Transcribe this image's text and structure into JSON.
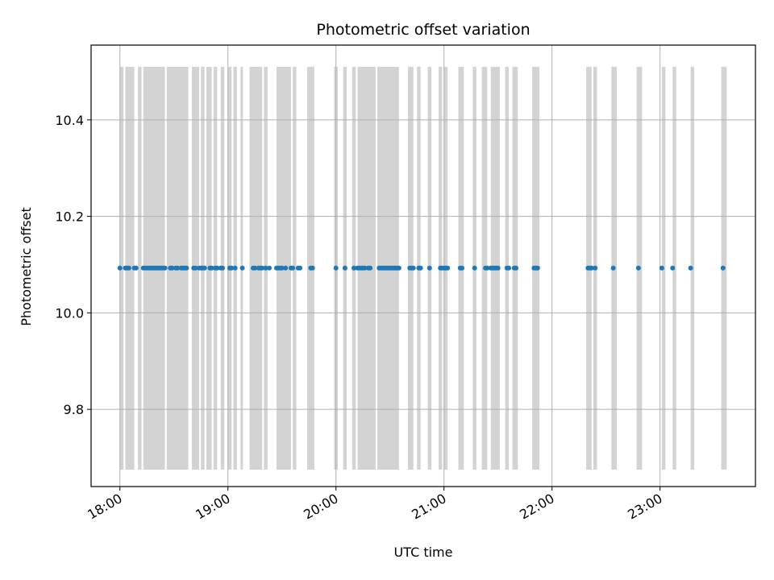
{
  "chart_data": {
    "type": "scatter",
    "title": "Photometric offset variation",
    "xlabel": "UTC time",
    "ylabel": "Photometric offset",
    "x_unit": "UTC time (HH:MM)",
    "xlim": [
      "17:44",
      "23:53"
    ],
    "ylim": [
      9.64,
      10.555
    ],
    "x_ticks": [
      "18:00",
      "19:00",
      "20:00",
      "21:00",
      "22:00",
      "23:00"
    ],
    "y_ticks": [
      9.8,
      10.0,
      10.2,
      10.4
    ],
    "y_tick_labels": [
      "9.8",
      "10.0",
      "10.2",
      "10.4"
    ],
    "grid": true,
    "span_range": [
      9.675,
      10.51
    ],
    "span_color": "#d3d3d3",
    "point_color": "#1f77b4",
    "series": [
      {
        "x": [
          "18:00",
          "18:03",
          "18:04",
          "18:05",
          "18:08",
          "18:09",
          "18:13",
          "18:14",
          "18:15",
          "18:16",
          "18:17",
          "18:18",
          "18:19",
          "18:20",
          "18:21",
          "18:22",
          "18:23",
          "18:24",
          "18:25",
          "18:28",
          "18:29",
          "18:31",
          "18:32",
          "18:34",
          "18:35",
          "18:36",
          "18:37",
          "18:41",
          "18:42",
          "18:44",
          "18:45",
          "18:46",
          "18:47",
          "18:50",
          "18:51",
          "18:53",
          "18:54",
          "18:56",
          "18:57",
          "19:01",
          "19:02",
          "19:04",
          "19:08",
          "19:14",
          "19:15",
          "19:17",
          "19:18",
          "19:19",
          "19:21",
          "19:23",
          "19:27",
          "19:28",
          "19:29",
          "19:30",
          "19:32",
          "19:35",
          "19:36",
          "19:39",
          "19:40",
          "19:46",
          "19:47",
          "20:00",
          "20:05",
          "20:10",
          "20:12",
          "20:13",
          "20:14",
          "20:15",
          "20:16",
          "20:18",
          "20:19",
          "20:24",
          "20:25",
          "20:26",
          "20:27",
          "20:28",
          "20:29",
          "20:30",
          "20:31",
          "20:32",
          "20:33",
          "20:34",
          "20:35",
          "20:41",
          "20:42",
          "20:43",
          "20:46",
          "20:47",
          "20:52",
          "20:58",
          "20:59",
          "21:00",
          "21:01",
          "21:02",
          "21:09",
          "21:10",
          "21:17",
          "21:23",
          "21:24",
          "21:26",
          "21:27",
          "21:28",
          "21:29",
          "21:30",
          "21:35",
          "21:36",
          "21:39",
          "21:40",
          "21:50",
          "21:51",
          "21:52",
          "22:20",
          "22:21",
          "22:22",
          "22:24",
          "22:34",
          "22:48",
          "23:01",
          "23:07",
          "23:17",
          "23:35"
        ],
        "y": [
          10.093,
          10.093,
          10.093,
          10.093,
          10.093,
          10.093,
          10.093,
          10.093,
          10.093,
          10.093,
          10.093,
          10.093,
          10.093,
          10.093,
          10.093,
          10.093,
          10.093,
          10.093,
          10.093,
          10.093,
          10.093,
          10.093,
          10.093,
          10.093,
          10.093,
          10.093,
          10.093,
          10.093,
          10.093,
          10.093,
          10.093,
          10.093,
          10.093,
          10.093,
          10.093,
          10.093,
          10.093,
          10.093,
          10.093,
          10.093,
          10.093,
          10.093,
          10.093,
          10.093,
          10.093,
          10.093,
          10.093,
          10.093,
          10.093,
          10.093,
          10.093,
          10.093,
          10.093,
          10.093,
          10.093,
          10.093,
          10.093,
          10.093,
          10.093,
          10.093,
          10.093,
          10.093,
          10.093,
          10.093,
          10.093,
          10.093,
          10.093,
          10.093,
          10.093,
          10.093,
          10.093,
          10.093,
          10.093,
          10.093,
          10.093,
          10.093,
          10.093,
          10.093,
          10.093,
          10.093,
          10.093,
          10.093,
          10.093,
          10.093,
          10.093,
          10.093,
          10.093,
          10.093,
          10.093,
          10.093,
          10.093,
          10.093,
          10.093,
          10.093,
          10.093,
          10.093,
          10.093,
          10.093,
          10.093,
          10.093,
          10.093,
          10.093,
          10.093,
          10.093,
          10.093,
          10.093,
          10.093,
          10.093,
          10.093,
          10.093,
          10.093,
          10.093,
          10.093,
          10.093,
          10.093,
          10.093,
          10.093,
          10.093,
          10.093,
          10.093,
          10.093
        ]
      }
    ],
    "spans": [
      [
        "18:00",
        "18:02"
      ],
      [
        "18:03",
        "18:08"
      ],
      [
        "18:10",
        "18:12"
      ],
      [
        "18:13",
        "18:25"
      ],
      [
        "18:26",
        "18:38"
      ],
      [
        "18:40",
        "18:44"
      ],
      [
        "18:45",
        "18:47"
      ],
      [
        "18:48",
        "18:51"
      ],
      [
        "18:52",
        "18:54"
      ],
      [
        "18:56",
        "18:58"
      ],
      [
        "19:00",
        "19:02"
      ],
      [
        "19:03",
        "19:05"
      ],
      [
        "19:07",
        "19:08"
      ],
      [
        "19:12",
        "19:19"
      ],
      [
        "19:20",
        "19:22"
      ],
      [
        "19:27",
        "19:35"
      ],
      [
        "19:36",
        "19:38"
      ],
      [
        "19:44",
        "19:48"
      ],
      [
        "19:59",
        "20:01"
      ],
      [
        "20:04",
        "20:06"
      ],
      [
        "20:09",
        "20:11"
      ],
      [
        "20:12",
        "20:22"
      ],
      [
        "20:23",
        "20:35"
      ],
      [
        "20:40",
        "20:43"
      ],
      [
        "20:45",
        "20:47"
      ],
      [
        "20:51",
        "20:53"
      ],
      [
        "20:57",
        "20:59"
      ],
      [
        "21:00",
        "21:02"
      ],
      [
        "21:08",
        "21:11"
      ],
      [
        "21:16",
        "21:18"
      ],
      [
        "21:21",
        "21:24"
      ],
      [
        "21:26",
        "21:31"
      ],
      [
        "21:34",
        "21:36"
      ],
      [
        "21:38",
        "21:41"
      ],
      [
        "21:49",
        "21:53"
      ],
      [
        "22:19",
        "22:22"
      ],
      [
        "22:23",
        "22:25"
      ],
      [
        "22:33",
        "22:36"
      ],
      [
        "22:47",
        "22:50"
      ],
      [
        "23:01",
        "23:03"
      ],
      [
        "23:07",
        "23:09"
      ],
      [
        "23:17",
        "23:19"
      ],
      [
        "23:34",
        "23:37"
      ]
    ]
  }
}
